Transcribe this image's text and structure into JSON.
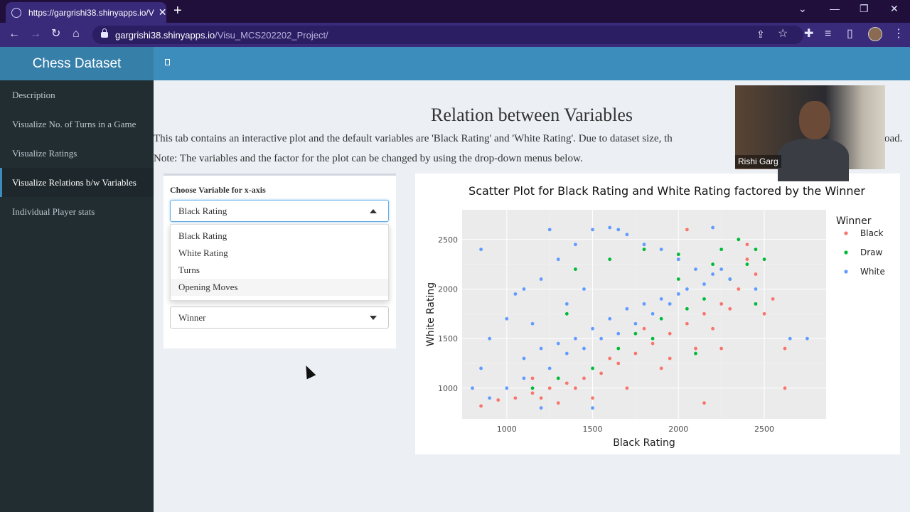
{
  "browser": {
    "tab_title": "https://gargrishi38.shinyapps.io/V",
    "url_host": "gargrishi38.shinyapps.io",
    "url_path": "/Visu_MCS202202_Project/"
  },
  "app": {
    "brand": "Chess Dataset"
  },
  "sidebar": {
    "items": [
      {
        "label": "Description"
      },
      {
        "label": "Visualize No. of Turns in a Game"
      },
      {
        "label": "Visualize Ratings"
      },
      {
        "label": "Visualize Relations b/w Variables"
      },
      {
        "label": "Individual Player stats"
      }
    ]
  },
  "main": {
    "title": "Relation between Variables",
    "description": "This tab contains an interactive plot and the default variables are 'Black Rating' and 'White Rating'. Due to dataset size, th",
    "description_tail": "oad.",
    "note": "Note: The variables and the factor for the plot can be changed by using the drop-down menus below.",
    "x_label": "Choose Variable for x-axis",
    "x_value": "Black Rating",
    "x_options": [
      "Black Rating",
      "White Rating",
      "Turns",
      "Opening Moves"
    ],
    "factor_value": "Winner"
  },
  "webcam": {
    "name": "Rishi Garg"
  },
  "chart_data": {
    "type": "scatter",
    "title": "Scatter Plot for Black Rating and White Rating factored by the Winner",
    "xlabel": "Black Rating",
    "ylabel": "White Rating",
    "xlim": [
      740,
      2860
    ],
    "ylim": [
      690,
      2800
    ],
    "x_ticks": [
      1000,
      1500,
      2000,
      2500
    ],
    "y_ticks": [
      1000,
      1500,
      2000,
      2500
    ],
    "legend_title": "Winner",
    "legend_position": "right",
    "grid": true,
    "series": [
      {
        "name": "Black",
        "color": "#f8766d",
        "points": [
          [
            850,
            820
          ],
          [
            950,
            880
          ],
          [
            1050,
            900
          ],
          [
            1150,
            950
          ],
          [
            1250,
            1000
          ],
          [
            1350,
            1050
          ],
          [
            1450,
            1100
          ],
          [
            1550,
            1150
          ],
          [
            1650,
            1250
          ],
          [
            1750,
            1350
          ],
          [
            1850,
            1450
          ],
          [
            1950,
            1550
          ],
          [
            2050,
            1650
          ],
          [
            2150,
            1750
          ],
          [
            2250,
            1850
          ],
          [
            2350,
            2000
          ],
          [
            2450,
            2150
          ],
          [
            2550,
            1900
          ],
          [
            2620,
            1400
          ],
          [
            2620,
            1000
          ],
          [
            1900,
            1200
          ],
          [
            2100,
            1400
          ],
          [
            2200,
            1600
          ],
          [
            2300,
            1800
          ],
          [
            1700,
            1000
          ],
          [
            1500,
            900
          ],
          [
            1300,
            850
          ],
          [
            2000,
            2300
          ],
          [
            2050,
            2600
          ],
          [
            2400,
            2450
          ],
          [
            1800,
            1600
          ],
          [
            1600,
            1300
          ],
          [
            1400,
            1000
          ],
          [
            1200,
            900
          ],
          [
            2500,
            1750
          ],
          [
            2250,
            1400
          ],
          [
            1950,
            1300
          ],
          [
            2150,
            850
          ],
          [
            1150,
            1100
          ],
          [
            2400,
            2300
          ]
        ]
      },
      {
        "name": "Draw",
        "color": "#00ba38",
        "points": [
          [
            1400,
            2200
          ],
          [
            1600,
            2300
          ],
          [
            1800,
            2400
          ],
          [
            2000,
            2350
          ],
          [
            2200,
            2250
          ],
          [
            2350,
            2500
          ],
          [
            2450,
            2400
          ],
          [
            2500,
            2300
          ],
          [
            1900,
            1700
          ],
          [
            2050,
            1800
          ],
          [
            2150,
            1900
          ],
          [
            1750,
            1550
          ],
          [
            1500,
            1200
          ],
          [
            1300,
            1100
          ],
          [
            1150,
            1000
          ],
          [
            2300,
            2100
          ],
          [
            2400,
            2250
          ],
          [
            2100,
            1350
          ],
          [
            1850,
            1500
          ],
          [
            2450,
            1850
          ],
          [
            1650,
            1400
          ],
          [
            1350,
            1750
          ],
          [
            2000,
            2100
          ],
          [
            2250,
            2400
          ]
        ]
      },
      {
        "name": "White",
        "color": "#619cff",
        "points": [
          [
            850,
            1200
          ],
          [
            900,
            1500
          ],
          [
            1000,
            1700
          ],
          [
            1100,
            2000
          ],
          [
            1200,
            2100
          ],
          [
            1300,
            2300
          ],
          [
            1400,
            2450
          ],
          [
            1500,
            2600
          ],
          [
            1600,
            2620
          ],
          [
            1700,
            2550
          ],
          [
            1800,
            2450
          ],
          [
            1900,
            2400
          ],
          [
            2000,
            2300
          ],
          [
            2100,
            2200
          ],
          [
            2200,
            2150
          ],
          [
            2300,
            2100
          ],
          [
            1100,
            1300
          ],
          [
            1200,
            1400
          ],
          [
            1300,
            1450
          ],
          [
            1400,
            1500
          ],
          [
            1500,
            1600
          ],
          [
            1600,
            1700
          ],
          [
            1700,
            1800
          ],
          [
            1800,
            1850
          ],
          [
            1900,
            1900
          ],
          [
            2000,
            1950
          ],
          [
            1100,
            1100
          ],
          [
            1250,
            1200
          ],
          [
            1350,
            1350
          ],
          [
            1450,
            1400
          ],
          [
            1550,
            1500
          ],
          [
            1650,
            1550
          ],
          [
            1750,
            1650
          ],
          [
            1850,
            1750
          ],
          [
            1950,
            1850
          ],
          [
            2050,
            2000
          ],
          [
            2150,
            2050
          ],
          [
            2250,
            2200
          ],
          [
            1000,
            1000
          ],
          [
            900,
            900
          ],
          [
            800,
            1000
          ],
          [
            850,
            2400
          ],
          [
            1250,
            2600
          ],
          [
            1650,
            2600
          ],
          [
            2200,
            2620
          ],
          [
            2750,
            1500
          ],
          [
            2650,
            1500
          ],
          [
            1500,
            800
          ],
          [
            1200,
            800
          ],
          [
            2450,
            2000
          ],
          [
            1050,
            1950
          ],
          [
            1150,
            1650
          ],
          [
            1450,
            2000
          ],
          [
            1350,
            1850
          ]
        ]
      }
    ]
  }
}
